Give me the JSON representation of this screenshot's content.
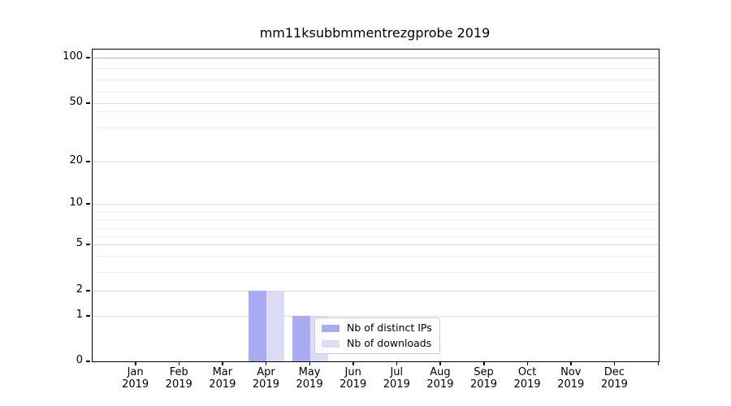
{
  "chart_data": {
    "type": "bar",
    "title": "mm11ksubbmmentrezgprobe 2019",
    "x_tick_months": [
      "Jan",
      "Feb",
      "Mar",
      "Apr",
      "May",
      "Jun",
      "Jul",
      "Aug",
      "Sep",
      "Oct",
      "Nov",
      "Dec"
    ],
    "x_tick_year": "2019",
    "series": [
      {
        "name": "Nb of distinct IPs",
        "color": "#aaaaf2",
        "values": [
          0,
          0,
          0,
          2,
          1,
          0,
          0,
          0,
          0,
          0,
          0,
          0
        ]
      },
      {
        "name": "Nb of downloads",
        "color": "#dcdcf7",
        "values": [
          0,
          0,
          0,
          2,
          1,
          0,
          0,
          0,
          0,
          0,
          0,
          0
        ]
      }
    ],
    "y_ticks": [
      0,
      1,
      2,
      5,
      10,
      20,
      50,
      100
    ],
    "y_minor_ticks": [
      3,
      4,
      6,
      7,
      8,
      9,
      30,
      40,
      70,
      80,
      90
    ],
    "ylim": [
      0,
      100
    ],
    "yscale": "symlog",
    "grid": "horizontal-major-and-minor",
    "legend": {
      "position": "lower-center-over-plot",
      "entries": [
        "Nb of distinct IPs",
        "Nb of downloads"
      ]
    }
  }
}
